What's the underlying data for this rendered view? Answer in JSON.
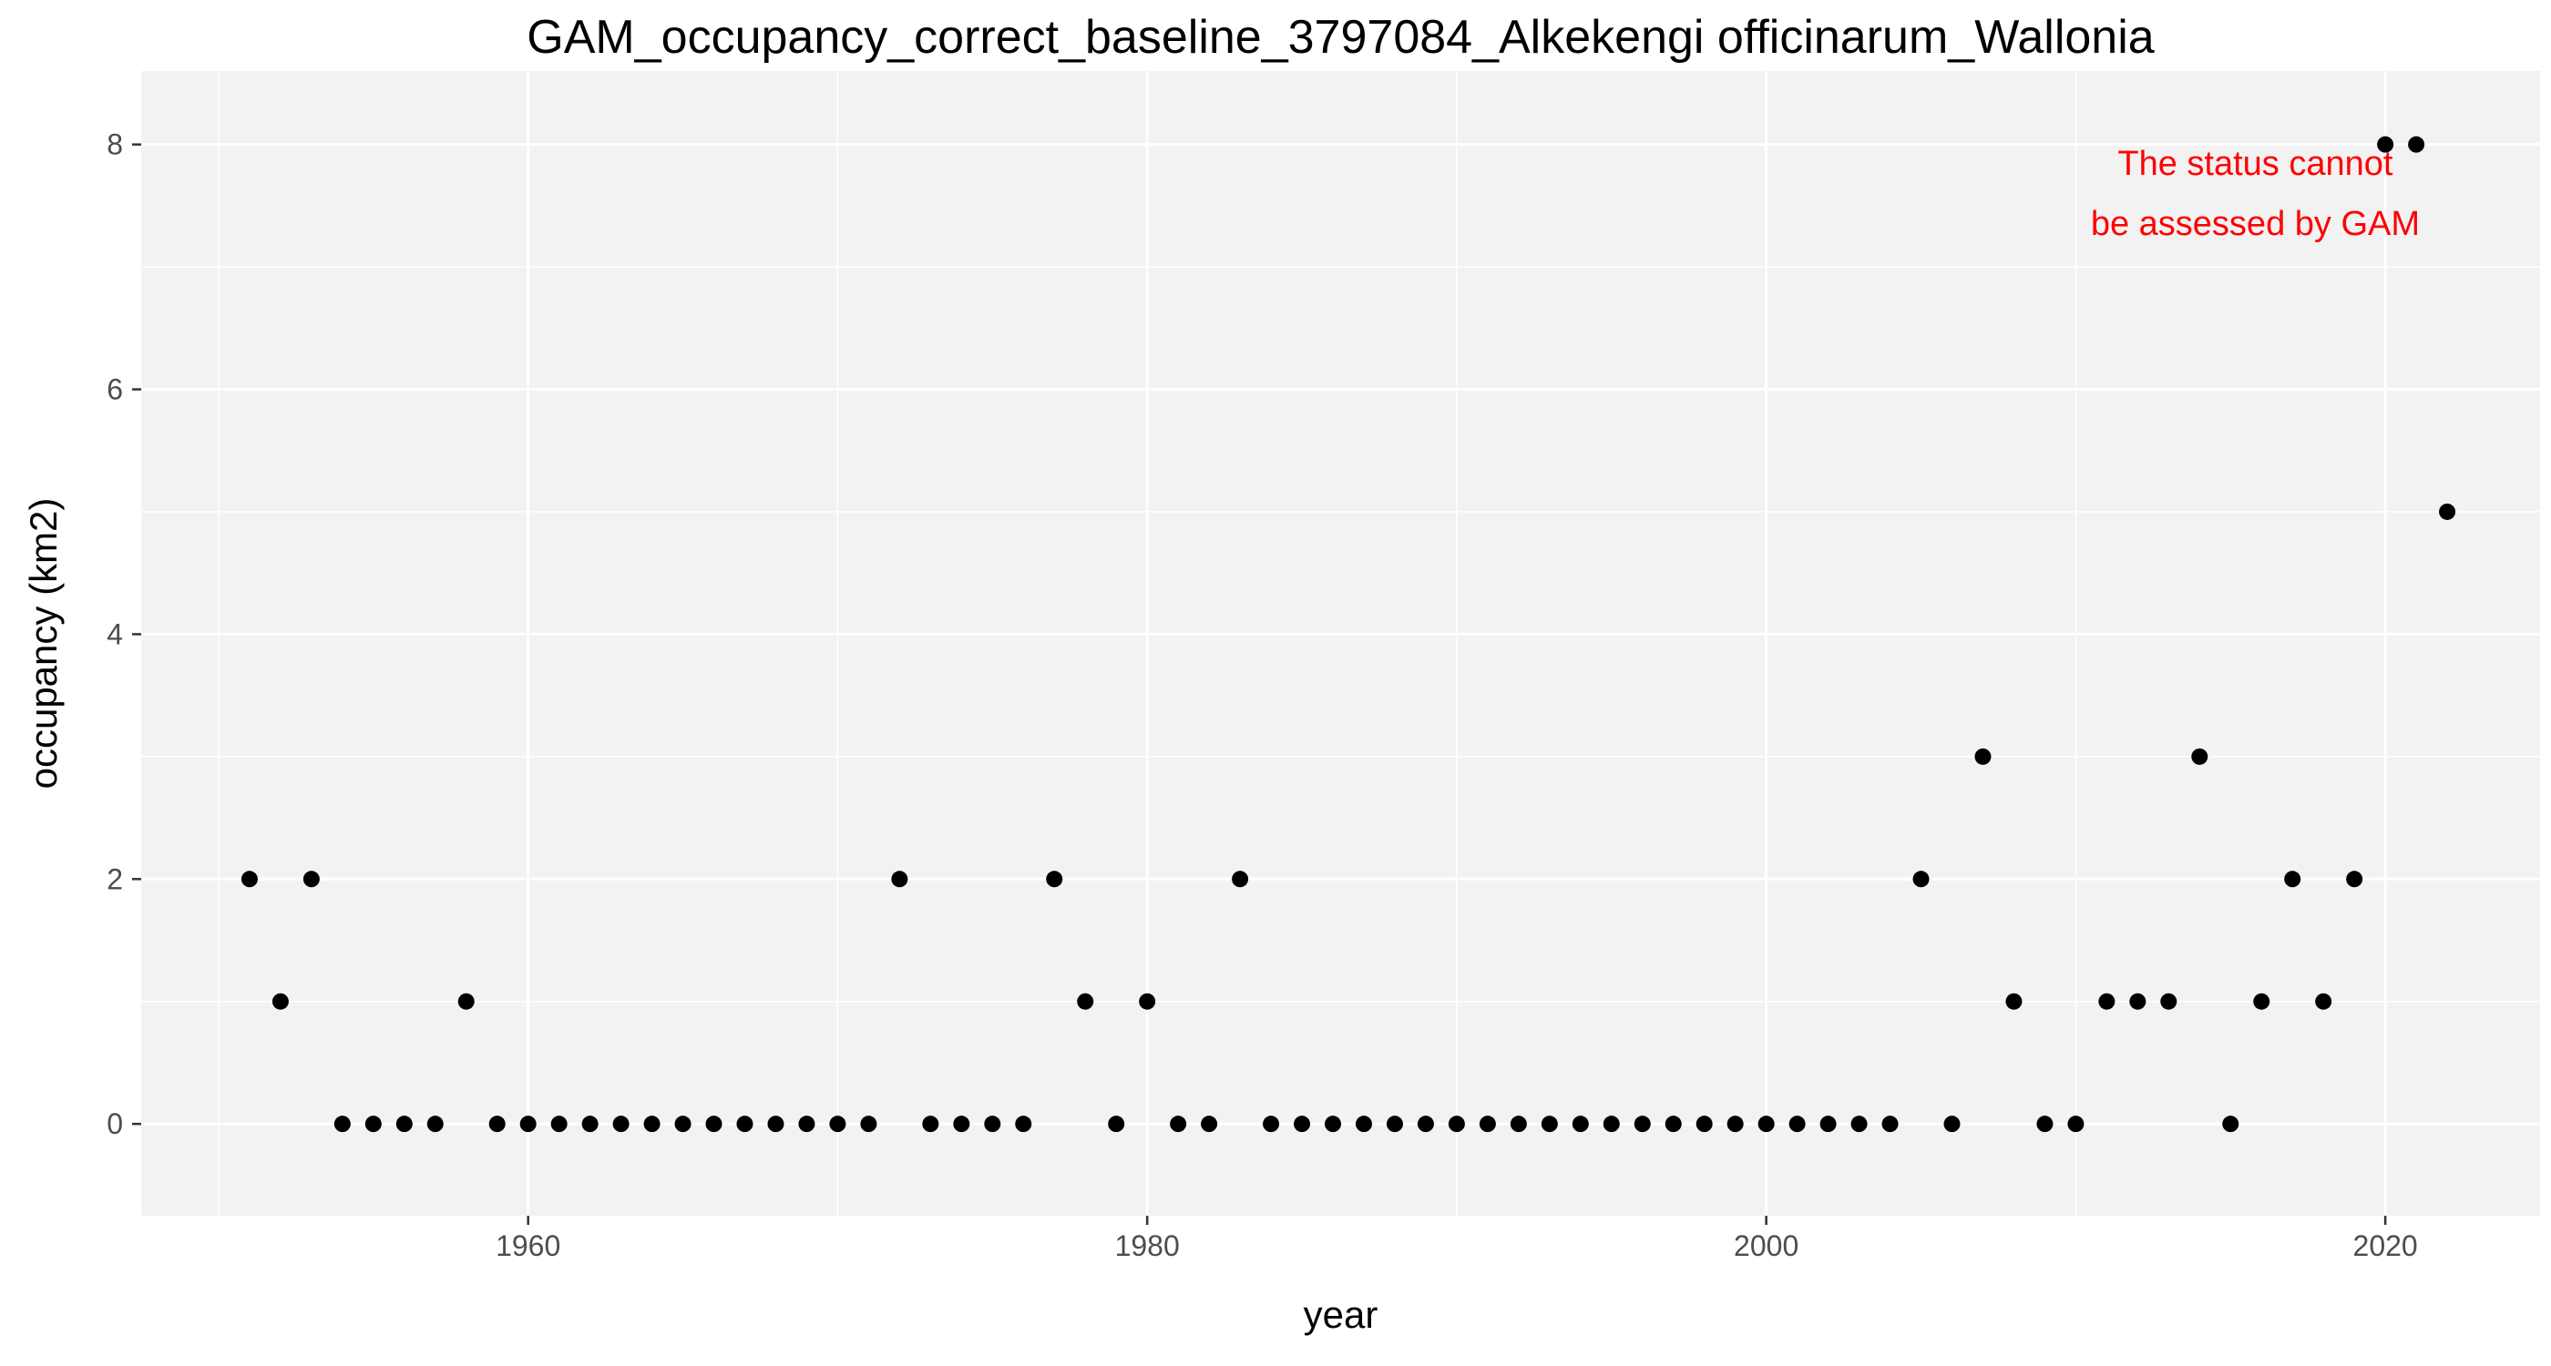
{
  "chart_data": {
    "type": "scatter",
    "title": "GAM_occupancy_correct_baseline_3797084_Alkekengi officinarum_Wallonia",
    "xlabel": "year",
    "ylabel": "occupancy (km2)",
    "xlim": [
      1947.5,
      2025
    ],
    "ylim": [
      -0.75,
      8.6
    ],
    "xticks": [
      1960,
      1980,
      2000,
      2020
    ],
    "yticks": [
      0,
      2,
      4,
      6,
      8
    ],
    "grid": true,
    "annotation": {
      "lines": [
        "The status cannot",
        "be assessed by GAM"
      ],
      "color": "#FF0000"
    },
    "colors": {
      "panel_background": "#F2F2F2",
      "grid_major": "#FFFFFF",
      "point": "#000000"
    },
    "x": [
      1951,
      1952,
      1953,
      1954,
      1955,
      1956,
      1957,
      1958,
      1959,
      1960,
      1961,
      1962,
      1963,
      1964,
      1965,
      1966,
      1967,
      1968,
      1969,
      1970,
      1971,
      1972,
      1973,
      1974,
      1975,
      1976,
      1977,
      1978,
      1979,
      1980,
      1981,
      1982,
      1983,
      1984,
      1985,
      1986,
      1987,
      1988,
      1989,
      1990,
      1991,
      1992,
      1993,
      1994,
      1995,
      1996,
      1997,
      1998,
      1999,
      2000,
      2001,
      2002,
      2003,
      2004,
      2005,
      2006,
      2007,
      2008,
      2009,
      2010,
      2011,
      2012,
      2013,
      2014,
      2015,
      2016,
      2017,
      2018,
      2019,
      2020,
      2021,
      2022
    ],
    "y": [
      2,
      1,
      2,
      0,
      0,
      0,
      0,
      1,
      0,
      0,
      0,
      0,
      0,
      0,
      0,
      0,
      0,
      0,
      0,
      0,
      0,
      2,
      0,
      0,
      0,
      0,
      2,
      1,
      0,
      1,
      0,
      0,
      2,
      0,
      0,
      0,
      0,
      0,
      0,
      0,
      0,
      0,
      0,
      0,
      0,
      0,
      0,
      0,
      0,
      0,
      0,
      0,
      0,
      0,
      2,
      0,
      3,
      1,
      0,
      0,
      1,
      1,
      1,
      3,
      0,
      1,
      2,
      1,
      2,
      8,
      8,
      5
    ]
  }
}
